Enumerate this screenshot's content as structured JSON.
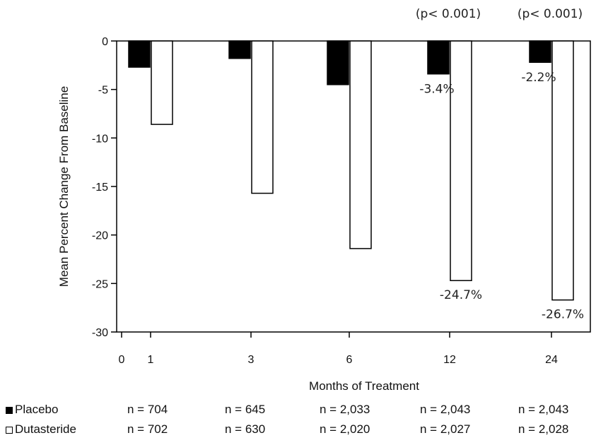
{
  "chart_data": {
    "type": "bar",
    "title": "",
    "xlabel": "Months of Treatment",
    "ylabel": "Mean Percent Change From Baseline",
    "ylim": [
      -30,
      0
    ],
    "yticks": [
      0,
      -5,
      -10,
      -15,
      -20,
      -25,
      -30
    ],
    "x_origin_label": "0",
    "categories": [
      "1",
      "3",
      "6",
      "12",
      "24"
    ],
    "series": [
      {
        "name": "Placebo",
        "color": "#000000",
        "values": [
          -2.7,
          -1.8,
          -4.5,
          -3.4,
          -2.2
        ]
      },
      {
        "name": "Dutasteride",
        "color": "#ffffff",
        "values": [
          -8.6,
          -15.7,
          -21.4,
          -24.7,
          -26.7
        ]
      }
    ],
    "data_labels": [
      {
        "category": "12",
        "series": "Placebo",
        "text": "-3.4%"
      },
      {
        "category": "24",
        "series": "Placebo",
        "text": "-2.2%"
      },
      {
        "category": "12",
        "series": "Dutasteride",
        "text": "-24.7%"
      },
      {
        "category": "24",
        "series": "Dutasteride",
        "text": "-26.7%"
      }
    ],
    "significance_labels": [
      {
        "category": "12",
        "text": "(p< 0.001)"
      },
      {
        "category": "24",
        "text": "(p< 0.001)"
      }
    ],
    "grid": false,
    "legend_position": "bottom-left"
  },
  "legend_table": {
    "rows": [
      {
        "name": "Placebo",
        "swatch": "filled",
        "n": [
          "n = 704",
          "n = 645",
          "n = 2,033",
          "n = 2,043",
          "n = 2,043"
        ]
      },
      {
        "name": "Dutasteride",
        "swatch": "open",
        "n": [
          "n = 702",
          "n = 630",
          "n = 2,020",
          "n = 2,027",
          "n = 2,028"
        ]
      }
    ]
  }
}
